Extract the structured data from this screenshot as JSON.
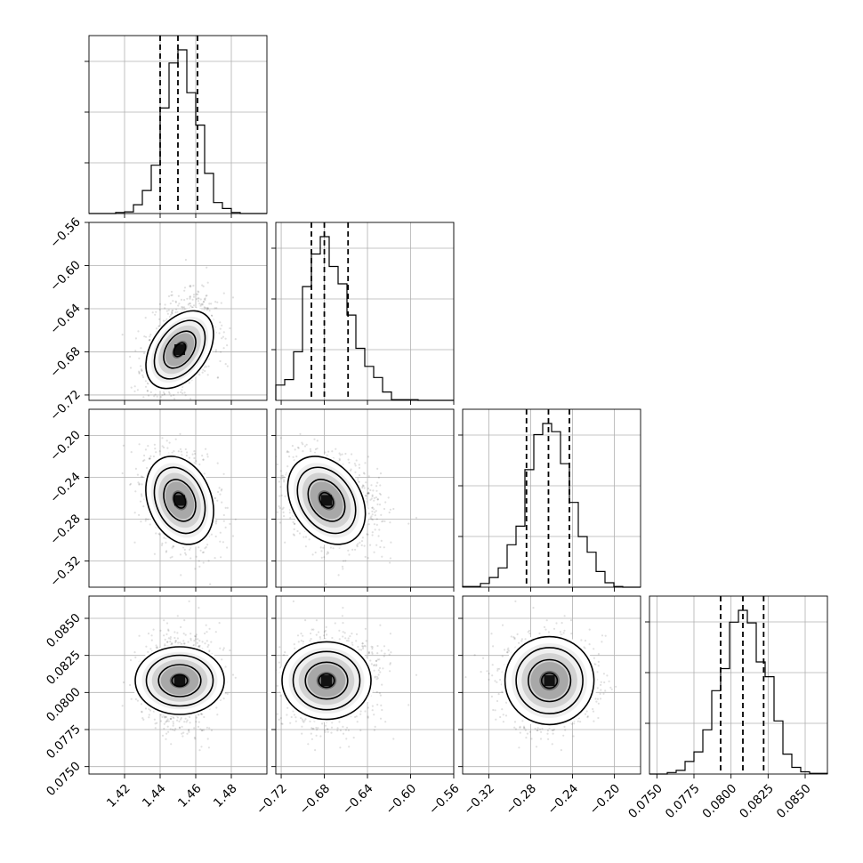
{
  "chart_data": {
    "type": "corner",
    "title": "",
    "grid": true,
    "quantiles": [
      0.16,
      0.5,
      0.84
    ],
    "parameters": [
      {
        "mean": 1.451,
        "sd": 0.0095,
        "range": [
          1.4,
          1.5
        ],
        "ticks": [
          1.42,
          1.44,
          1.46,
          1.48
        ],
        "tick_labels": [
          "1.42",
          "1.44",
          "1.46",
          "1.48"
        ],
        "quantile_values": [
          1.44,
          1.45,
          1.461
        ]
      },
      {
        "mean": -0.678,
        "sd": 0.018,
        "range": [
          -0.725,
          -0.56
        ],
        "ticks": [
          -0.72,
          -0.68,
          -0.64,
          -0.6,
          -0.56
        ],
        "tick_labels": [
          "−0.72",
          "−0.68",
          "−0.64",
          "−0.60",
          "−0.56"
        ],
        "quantile_values": [
          -0.692,
          -0.68,
          -0.658
        ]
      },
      {
        "mean": -0.262,
        "sd": 0.021,
        "range": [
          -0.345,
          -0.175
        ],
        "ticks": [
          -0.32,
          -0.28,
          -0.24,
          -0.2
        ],
        "tick_labels": [
          "−0.32",
          "−0.28",
          "−0.24",
          "−0.20"
        ],
        "quantile_values": [
          -0.284,
          -0.263,
          -0.243
        ]
      },
      {
        "mean": 0.0808,
        "sd": 0.0015,
        "range": [
          0.0745,
          0.0865
        ],
        "ticks": [
          0.075,
          0.0775,
          0.08,
          0.0825,
          0.085
        ],
        "tick_labels": [
          "0.0750",
          "0.0775",
          "0.0800",
          "0.0825",
          "0.0850"
        ],
        "quantile_values": [
          0.0793,
          0.0808,
          0.0822
        ]
      }
    ],
    "correlations": [
      [
        1.0,
        0.4,
        -0.25,
        0.0
      ],
      [
        0.4,
        1.0,
        -0.3,
        0.0
      ],
      [
        -0.25,
        -0.3,
        1.0,
        0.0
      ],
      [
        0.0,
        0.0,
        0.0,
        1.0
      ]
    ]
  }
}
